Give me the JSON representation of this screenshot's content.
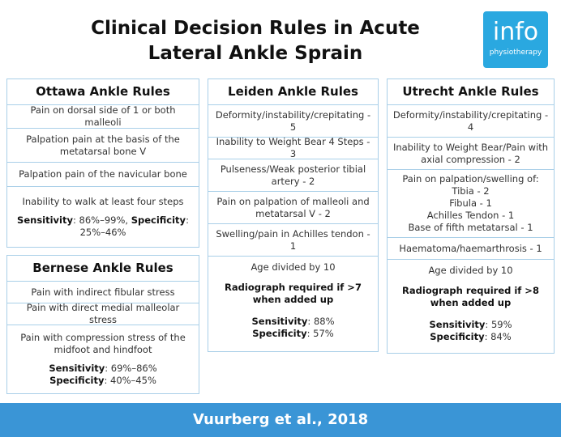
{
  "title": {
    "line1": "Clinical Decision Rules in Acute",
    "line2": "Lateral Ankle Sprain"
  },
  "logo": {
    "word": "info",
    "sub": "physiotherapy"
  },
  "ottawa": {
    "heading": "Ottawa Ankle Rules",
    "rows": [
      "Pain on dorsal side of 1 or both malleoli",
      "Palpation pain at the basis of the metatarsal bone V",
      "Palpation pain of the navicular bone",
      "Inability to walk at least four steps"
    ],
    "sens_label": "Sensitivity",
    "sens_value": ": 86%–99%, ",
    "spec_label": "Specificity",
    "spec_value": ": 25%–46%"
  },
  "bernese": {
    "heading": "Bernese Ankle Rules",
    "rows": [
      "Pain with indirect fibular stress",
      "Pain with direct medial malleolar stress",
      "Pain with compression stress of the midfoot and hindfoot"
    ],
    "sens_label": "Sensitivity",
    "sens_value": ": 69%–86%",
    "spec_label": "Specificity",
    "spec_value": ": 40%–45%"
  },
  "leiden": {
    "heading": "Leiden Ankle Rules",
    "rows": [
      "Deformity/instability/crepitating - 5",
      "Inability to Weight Bear 4 Steps - 3",
      "Pulseness/Weak posterior tibial artery - 2",
      "Pain on palpation of malleoli and metatarsal V - 2",
      "Swelling/pain in Achilles tendon - 1",
      "Age divided by 10"
    ],
    "radiograph": "Radiograph required if >7 when added up",
    "sens_label": "Sensitivity",
    "sens_value": ": 88%",
    "spec_label": "Specificity",
    "spec_value": ": 57%"
  },
  "utrecht": {
    "heading": "Utrecht Ankle Rules",
    "rows": [
      "Deformity/instability/crepitating - 4",
      "Inability to Weight Bear/Pain with axial compression - 2",
      "Haematoma/haemarthrosis - 1",
      "Age divided by 10"
    ],
    "palpation_lines": [
      "Pain on palpation/swelling of:",
      "Tibia - 2",
      "Fibula - 1",
      "Achilles Tendon - 1",
      "Base of fifth metatarsal - 1"
    ],
    "radiograph": "Radiograph required if >8 when added up",
    "sens_label": "Sensitivity",
    "sens_value": ": 59%",
    "spec_label": "Specificity",
    "spec_value": ": 84%"
  },
  "footer": "Vuurberg et al., 2018"
}
